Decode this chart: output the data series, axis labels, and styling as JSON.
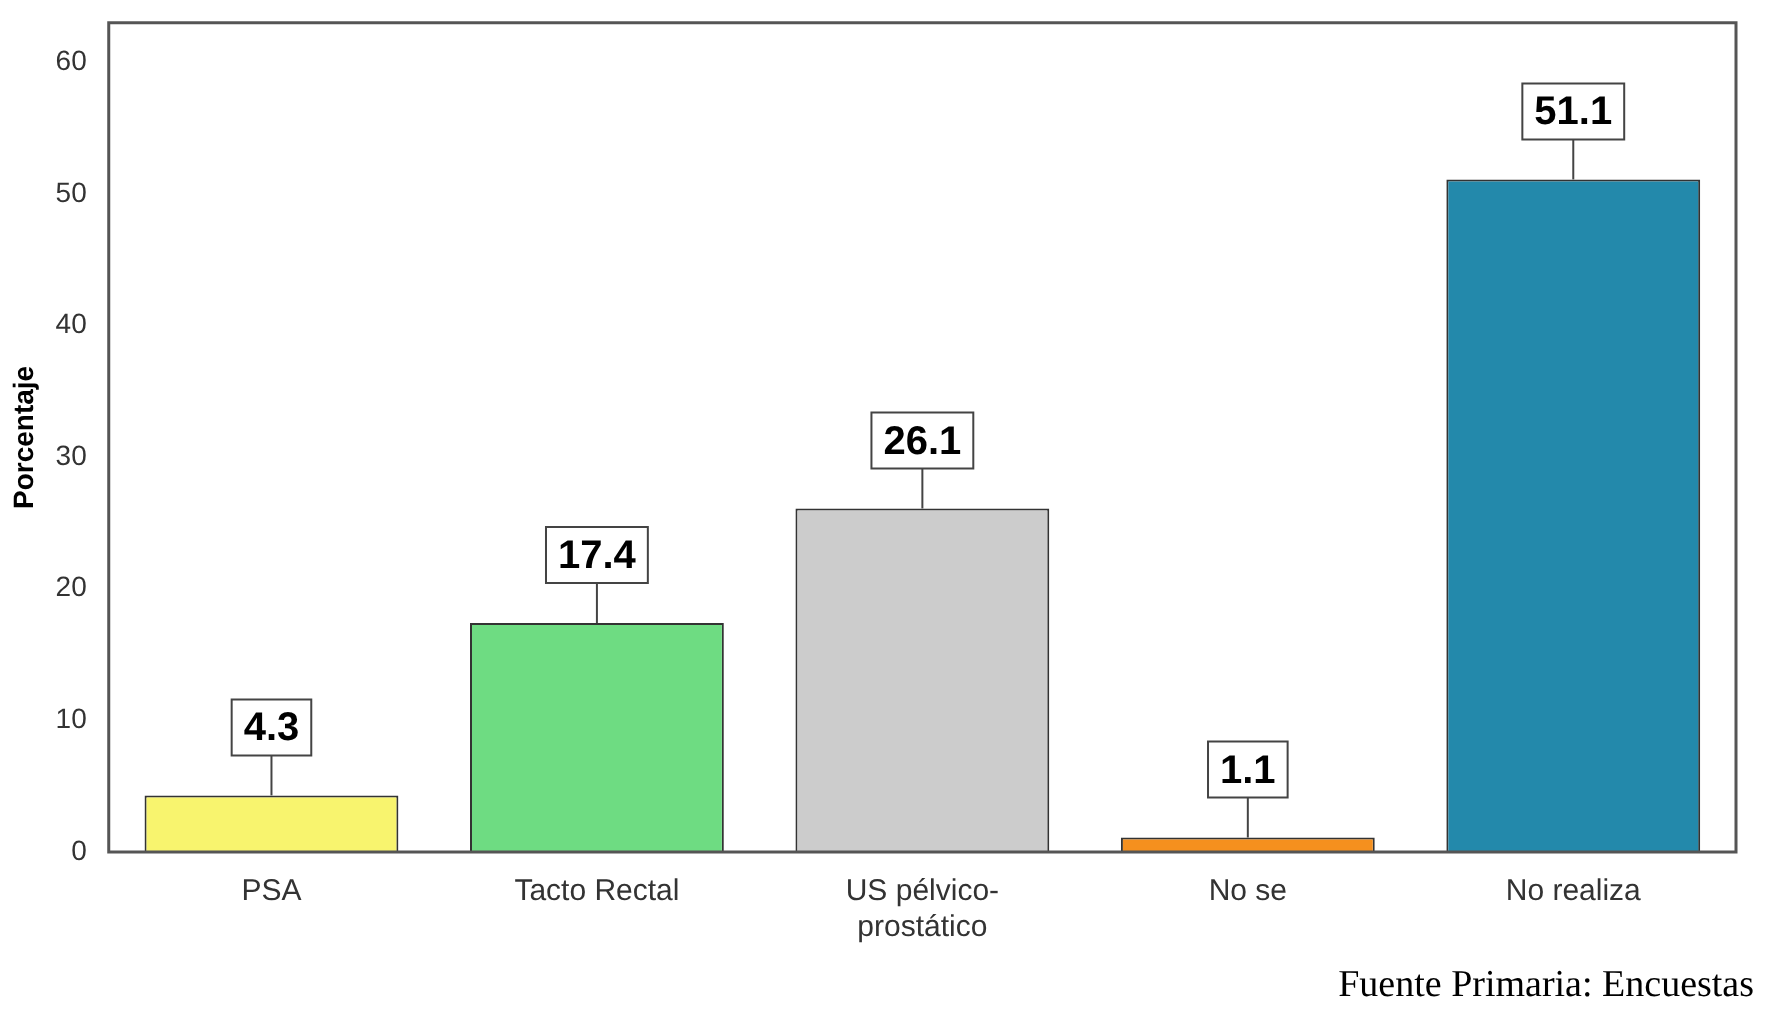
{
  "chart_data": {
    "type": "bar",
    "ylabel": "Porcentaje",
    "categories": [
      "PSA",
      "Tacto Rectal",
      "US pélvico-prostático",
      "No se",
      "No realiza"
    ],
    "values": [
      4.3,
      17.4,
      26.1,
      1.1,
      51.1
    ],
    "colors": [
      "#f8f46e",
      "#6edc82",
      "#cccccc",
      "#f5901e",
      "#2389ab"
    ],
    "ylim": [
      0,
      63
    ],
    "yticks": [
      0,
      10,
      20,
      30,
      40,
      50,
      60
    ],
    "grid": false,
    "legend": false,
    "data_labels": true,
    "annotations": [
      "Fuente Primaria: Encuestas"
    ]
  }
}
